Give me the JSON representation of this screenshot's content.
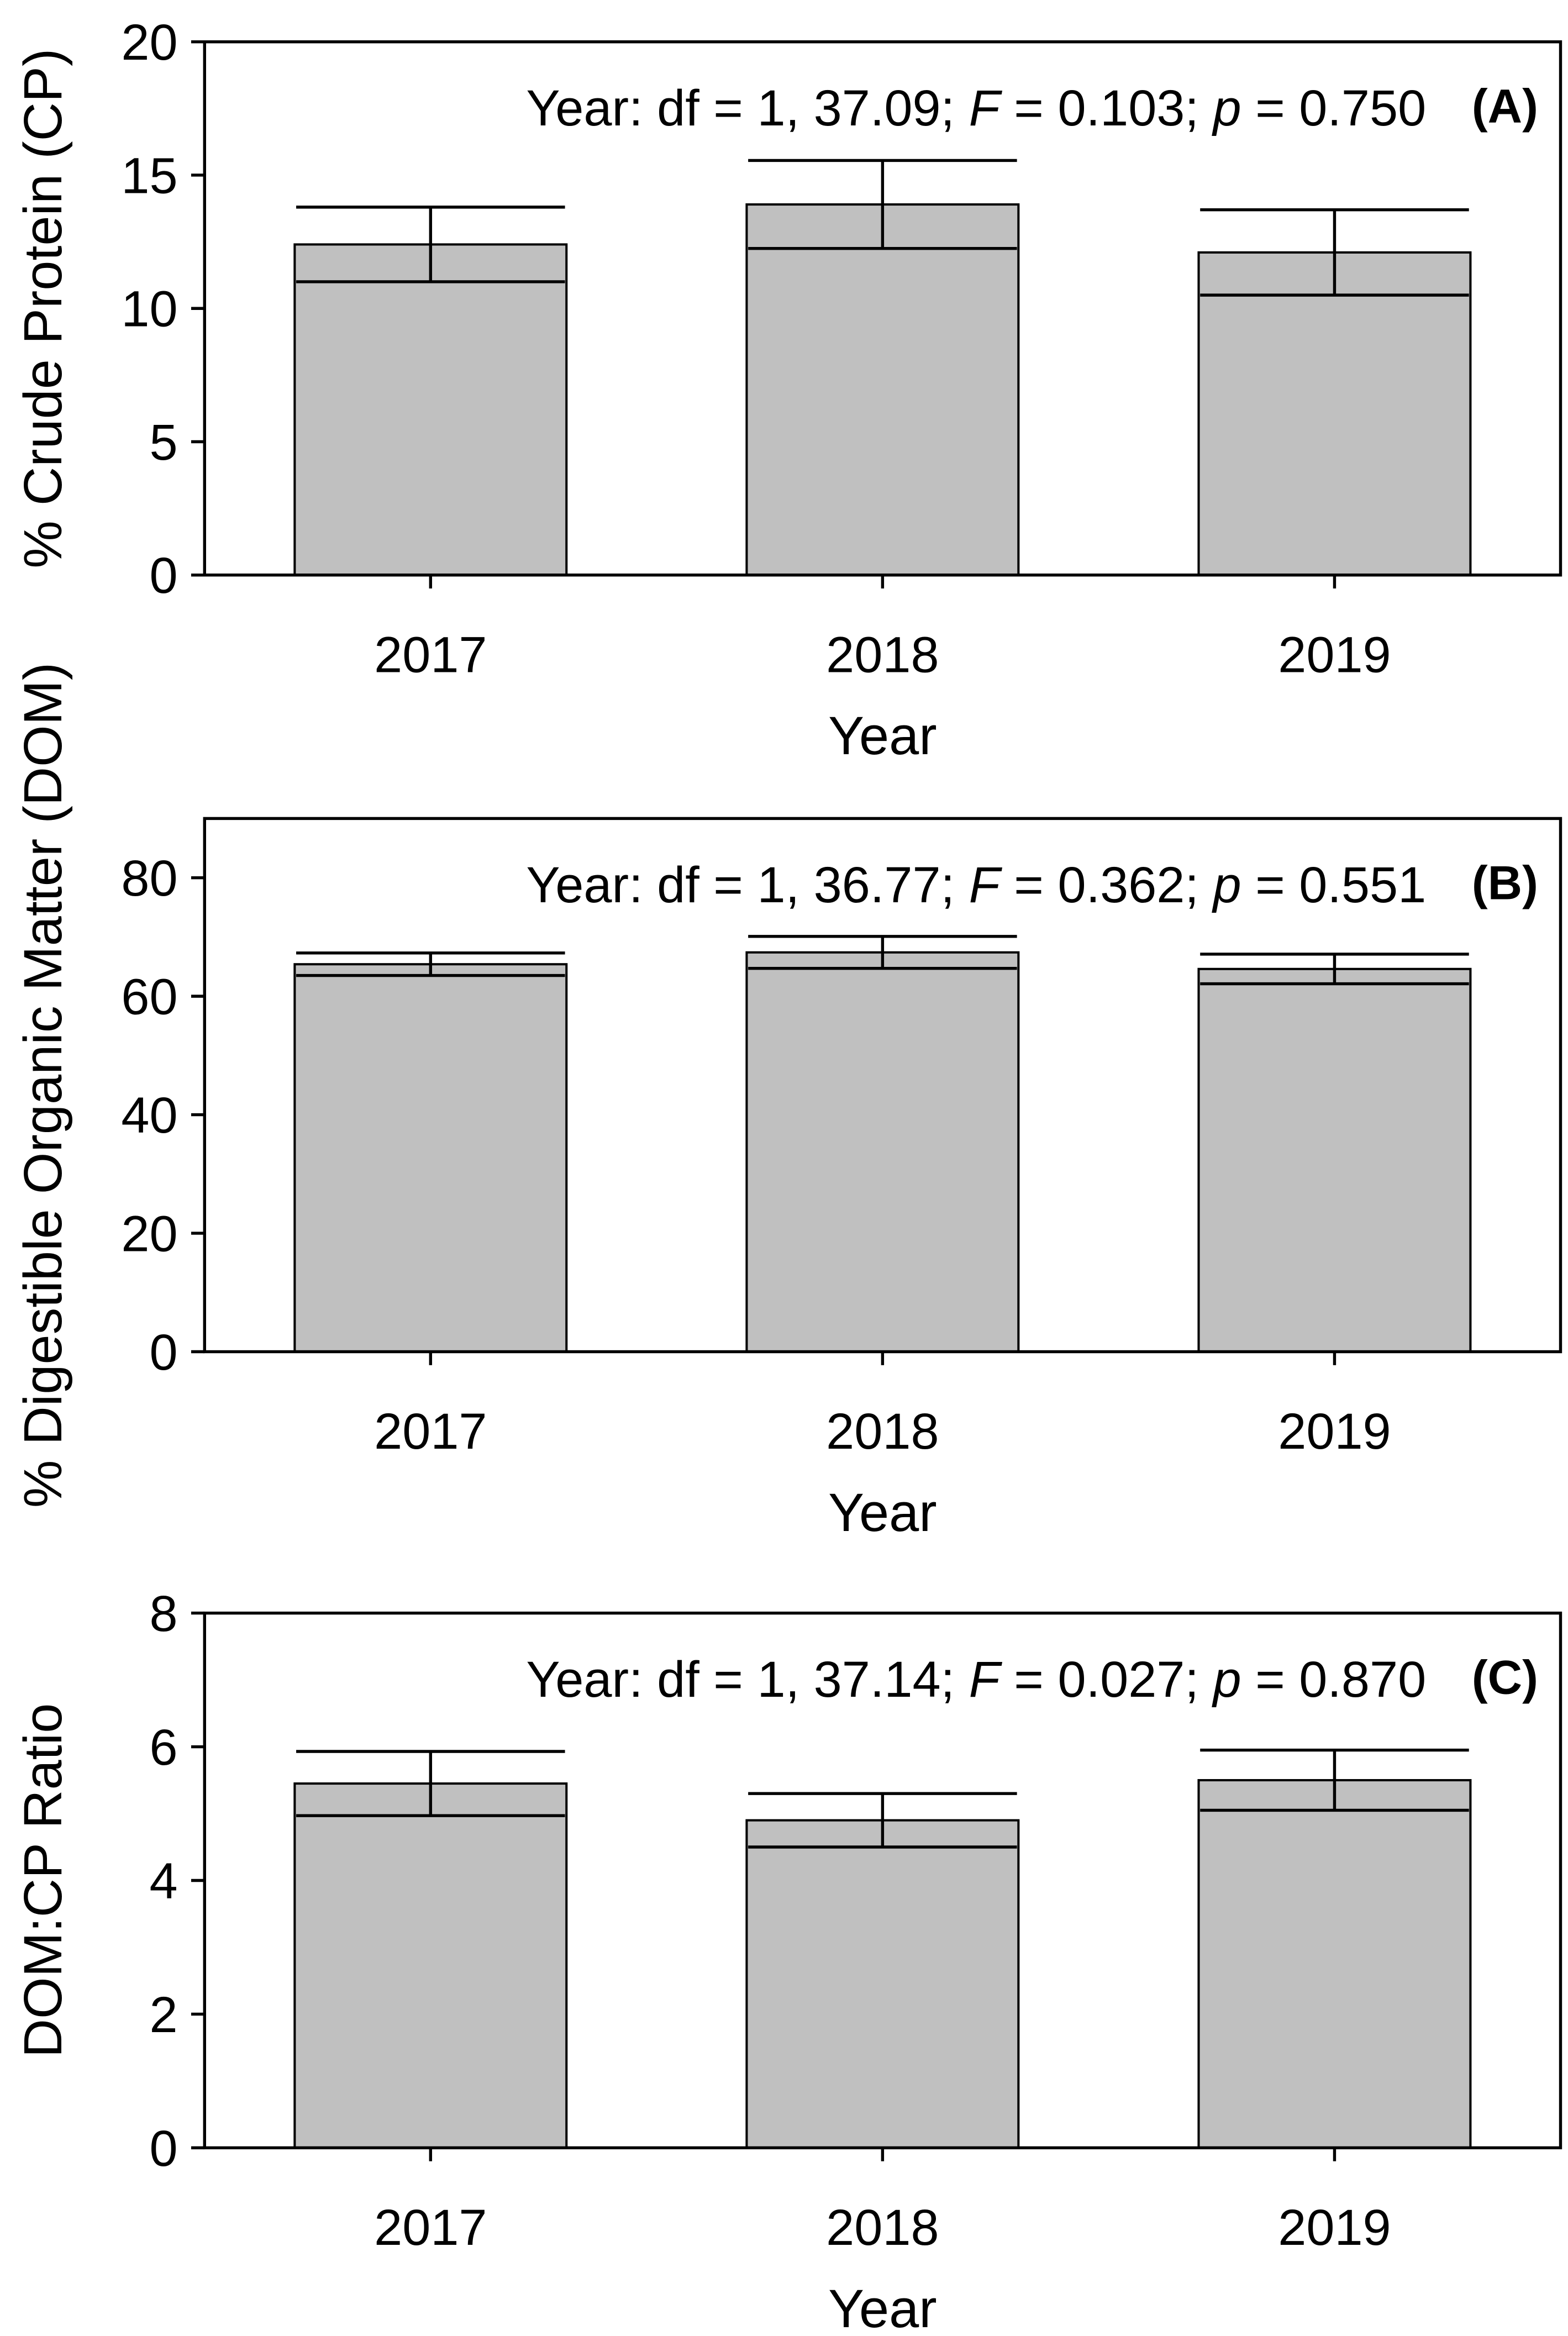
{
  "chart_data": [
    {
      "type": "bar",
      "categories": [
        "2017",
        "2018",
        "2019"
      ],
      "values": [
        12.4,
        13.9,
        12.1
      ],
      "errors": [
        1.4,
        1.65,
        1.6
      ],
      "color": "#c0c0c0",
      "ylim": [
        0,
        20
      ],
      "yticks": [
        0,
        5,
        10,
        15,
        20
      ],
      "xlabel": "Year",
      "ylabel": "% Crude Protein (CP)",
      "annotation": [
        "Year: df = 1, 37.09; ",
        "F",
        " = 0.103; ",
        "p",
        " = 0.750"
      ],
      "panel_label": "(A)"
    },
    {
      "type": "bar",
      "categories": [
        "2017",
        "2018",
        "2019"
      ],
      "values": [
        65.4,
        67.4,
        64.6
      ],
      "errors": [
        1.9,
        2.7,
        2.5
      ],
      "color": "#c0c0c0",
      "ylim": [
        0,
        90
      ],
      "yticks": [
        0,
        20,
        40,
        60,
        80
      ],
      "xlabel": "Year",
      "ylabel": "% Digestible Organic Matter (DOM)",
      "annotation": [
        "Year: df = 1, 36.77; ",
        "F",
        " = 0.362; ",
        "p",
        " = 0.551"
      ],
      "panel_label": "(B)"
    },
    {
      "type": "bar",
      "categories": [
        "2017",
        "2018",
        "2019"
      ],
      "values": [
        5.45,
        4.9,
        5.5
      ],
      "errors": [
        0.48,
        0.4,
        0.45
      ],
      "color": "#c0c0c0",
      "ylim": [
        0,
        8
      ],
      "yticks": [
        0,
        2,
        4,
        6,
        8
      ],
      "xlabel": "Year",
      "ylabel": "DOM:CP Ratio",
      "annotation": [
        "Year: df = 1, 37.14; ",
        "F",
        " = 0.027; ",
        "p",
        " = 0.870"
      ],
      "panel_label": "(C)"
    }
  ]
}
